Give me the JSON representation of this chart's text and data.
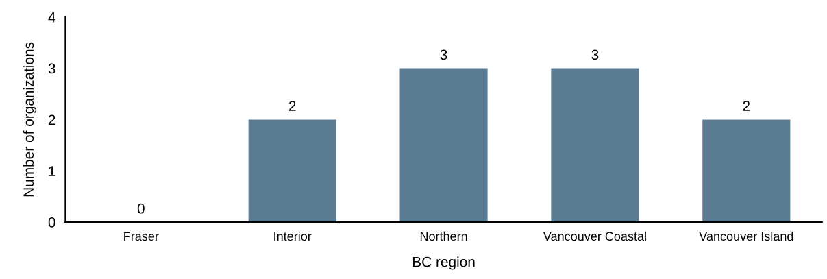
{
  "chart_data": {
    "type": "bar",
    "xlabel": "BC region",
    "ylabel": "Number of organizations",
    "categories": [
      "Fraser",
      "Interior",
      "Northern",
      "Vancouver Coastal",
      "Vancouver Island"
    ],
    "values": [
      0,
      2,
      3,
      3,
      2
    ],
    "color": "#5a7b91",
    "ylim": [
      0,
      4
    ],
    "yticks": [
      0,
      1,
      2,
      3,
      4
    ],
    "grid": false,
    "data_labels": true
  }
}
